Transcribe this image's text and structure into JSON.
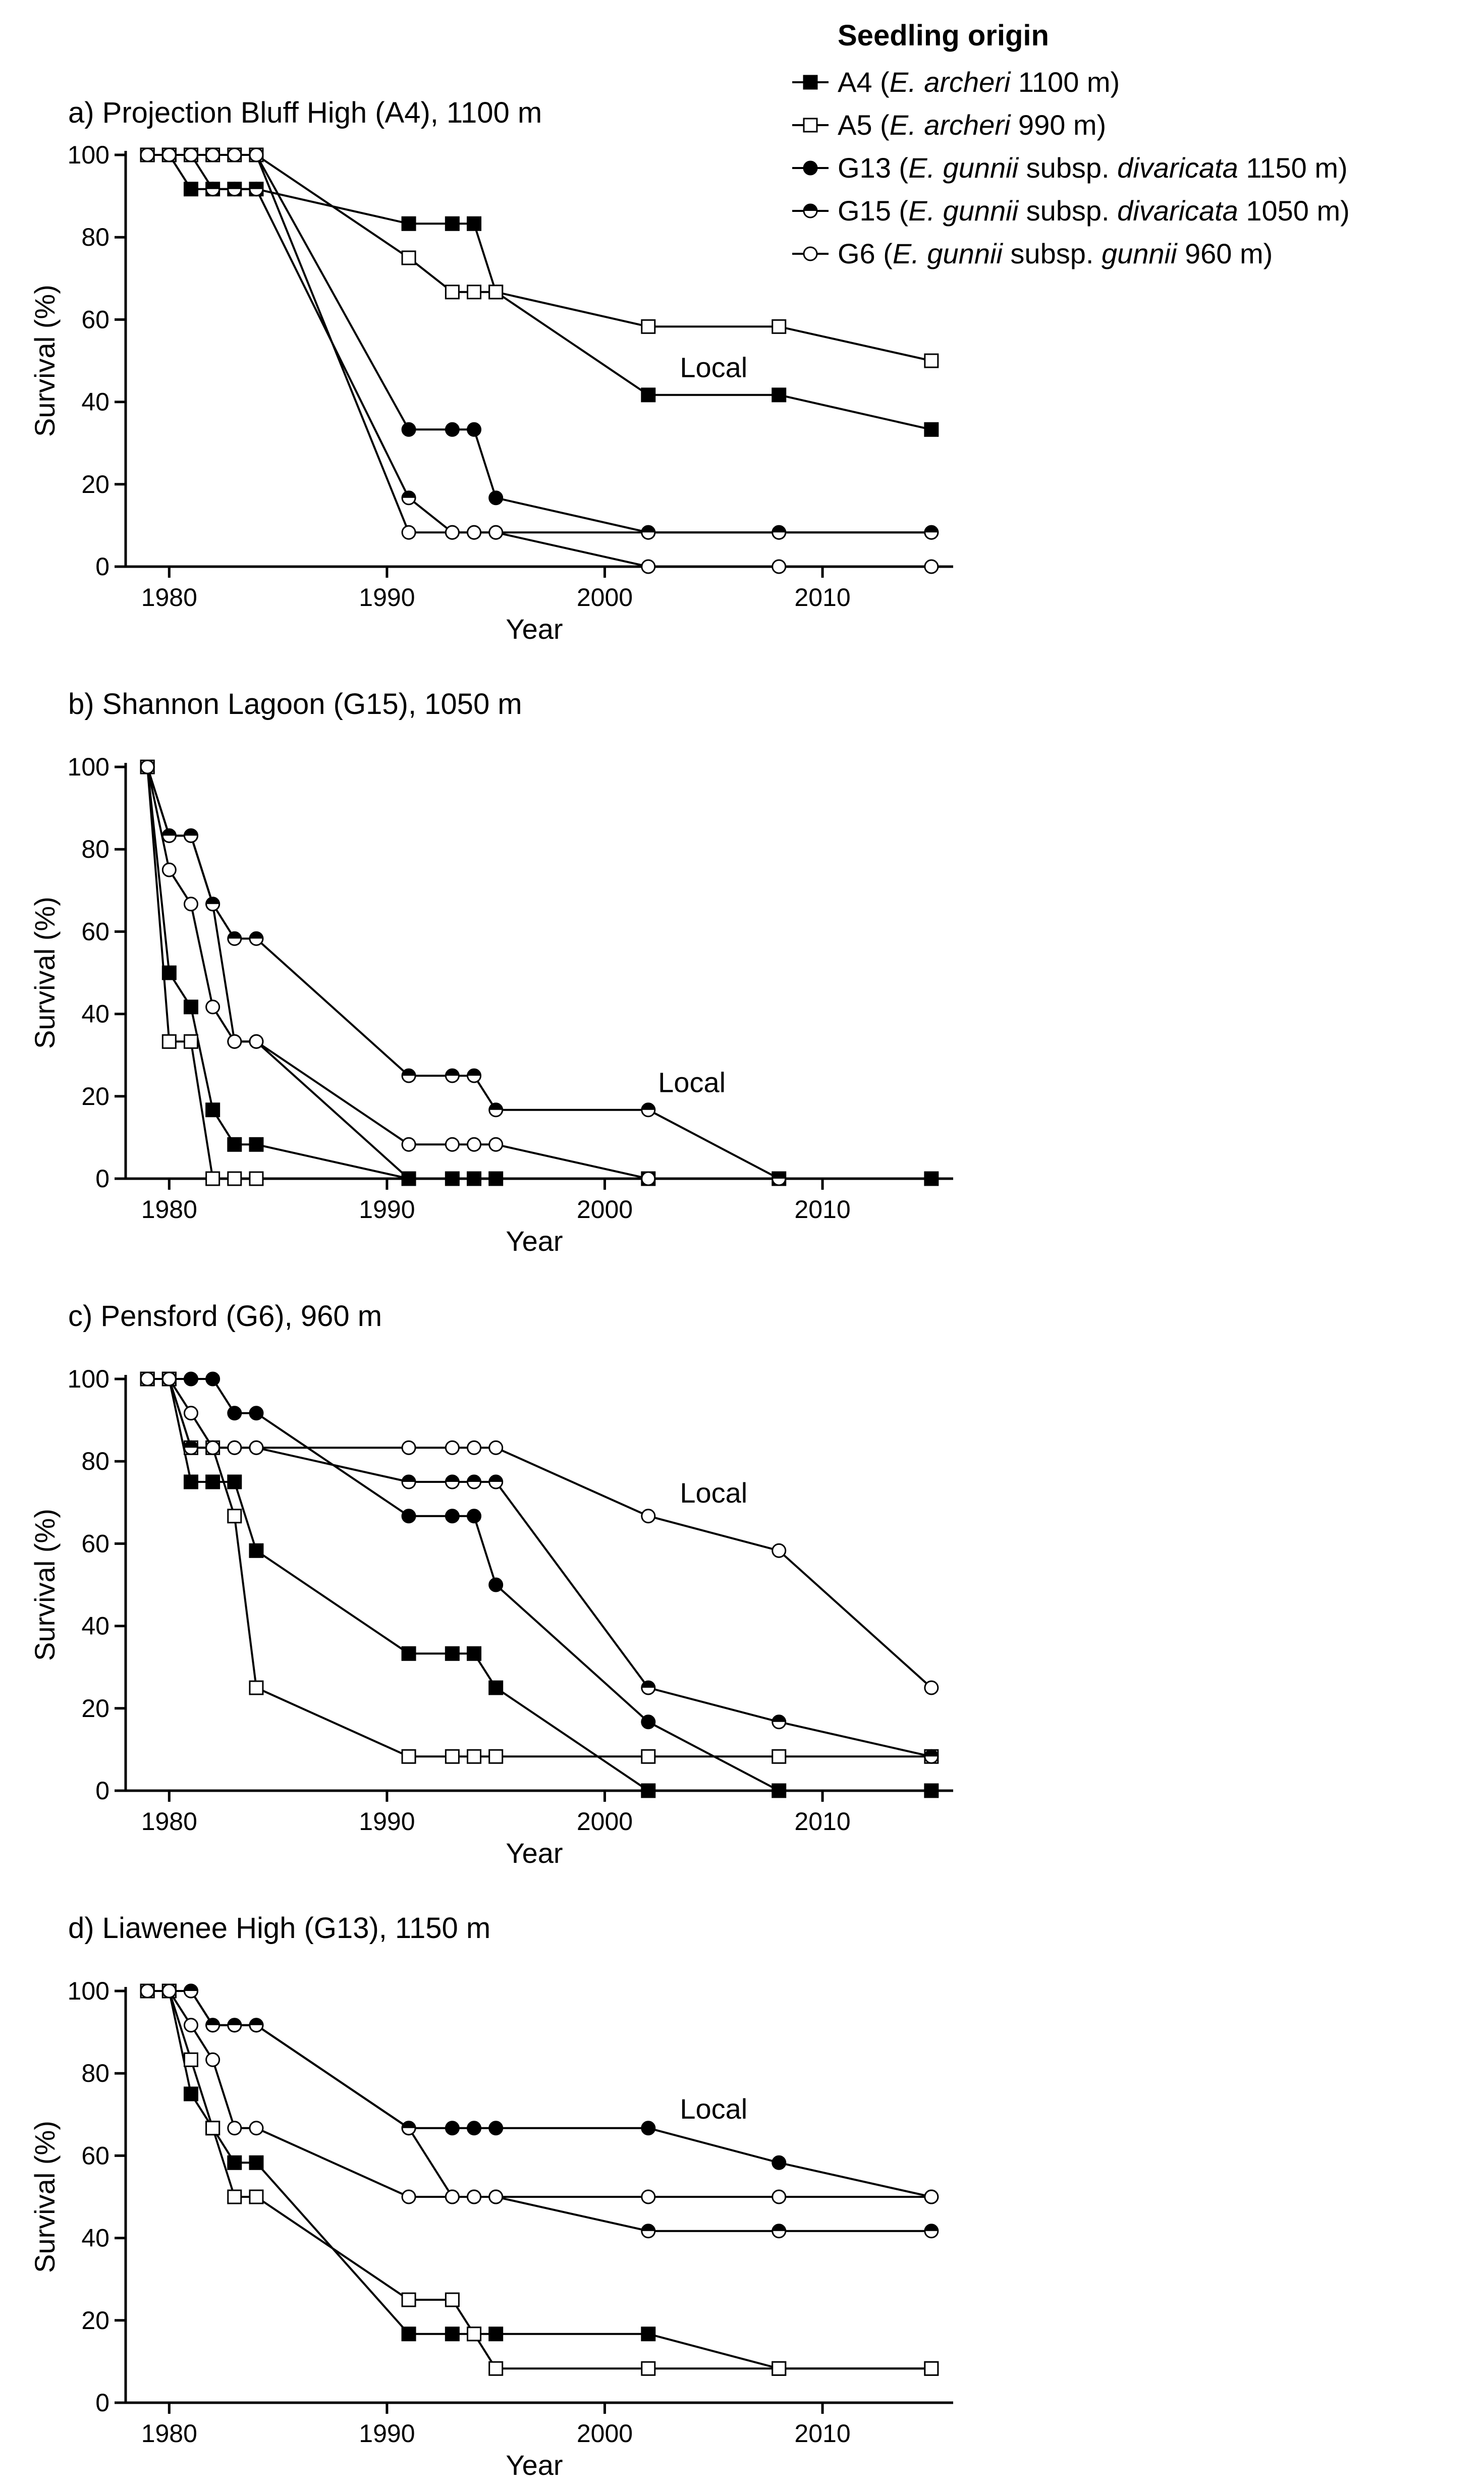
{
  "legend": {
    "title": "Seedling origin",
    "entries": [
      {
        "code": "A4",
        "pre": " (",
        "species": "E. archeri",
        "subsp": "",
        "subspName": "",
        "post": " 1100 m)",
        "marker": "filled-square"
      },
      {
        "code": "A5",
        "pre": " (",
        "species": "E. archeri",
        "subsp": "",
        "subspName": "",
        "post": " 990 m)",
        "marker": "open-square"
      },
      {
        "code": "G13",
        "pre": " (",
        "species": "E. gunnii",
        "subsp": " subsp. ",
        "subspName": "divaricata",
        "post": " 1150 m)",
        "marker": "filled-circle"
      },
      {
        "code": "G15",
        "pre": " (",
        "species": "E. gunnii",
        "subsp": " subsp. ",
        "subspName": "divaricata",
        "post": " 1050 m)",
        "marker": "half-circle"
      },
      {
        "code": "G6",
        "pre": " (",
        "species": "E. gunnii",
        "subsp": " subsp. ",
        "subspName": "gunnii",
        "post": " 960 m)",
        "marker": "open-circle"
      }
    ]
  },
  "colors": {
    "line": "#000000",
    "background": "#ffffff",
    "open_fill": "#ffffff"
  },
  "chart_data": [
    {
      "type": "line",
      "title": "a) Projection Bluff High (A4), 1100 m",
      "xlabel": "Year",
      "ylabel": "Survival (%)",
      "xlim": [
        1978,
        2016
      ],
      "ylim": [
        0,
        100
      ],
      "xticks": [
        1980,
        1990,
        2000,
        2010
      ],
      "yticks": [
        0,
        20,
        40,
        60,
        80,
        100
      ],
      "annotation": {
        "text": "Local",
        "x": 2005,
        "y": 46
      },
      "series": [
        {
          "name": "A4",
          "x": [
            1979,
            1980,
            1981,
            1982,
            1983,
            1984,
            1991,
            1993,
            1994,
            1995,
            2002,
            2008,
            2015
          ],
          "y": [
            100,
            100,
            91.7,
            91.7,
            91.7,
            91.7,
            83.3,
            83.3,
            83.3,
            66.7,
            41.7,
            41.7,
            33.3
          ]
        },
        {
          "name": "A5",
          "x": [
            1979,
            1980,
            1981,
            1982,
            1983,
            1984,
            1991,
            1993,
            1994,
            1995,
            2002,
            2008,
            2015
          ],
          "y": [
            100,
            100,
            100,
            100,
            100,
            100,
            75,
            66.7,
            66.7,
            66.7,
            58.3,
            58.3,
            50
          ]
        },
        {
          "name": "G13",
          "x": [
            1979,
            1980,
            1981,
            1982,
            1983,
            1984,
            1991,
            1993,
            1994,
            1995,
            2002,
            2008,
            2015
          ],
          "y": [
            100,
            100,
            100,
            100,
            100,
            100,
            33.3,
            33.3,
            33.3,
            16.7,
            8.3,
            8.3,
            8.3
          ]
        },
        {
          "name": "G15",
          "x": [
            1979,
            1980,
            1981,
            1982,
            1983,
            1984,
            1991,
            1993,
            1994,
            1995,
            2002,
            2008,
            2015
          ],
          "y": [
            100,
            100,
            100,
            91.7,
            91.7,
            91.7,
            16.7,
            8.3,
            8.3,
            8.3,
            8.3,
            8.3,
            8.3
          ]
        },
        {
          "name": "G6",
          "x": [
            1979,
            1980,
            1981,
            1982,
            1983,
            1984,
            1991,
            1993,
            1994,
            1995,
            2002,
            2008,
            2015
          ],
          "y": [
            100,
            100,
            100,
            100,
            100,
            100,
            8.3,
            8.3,
            8.3,
            8.3,
            0,
            0,
            0
          ]
        }
      ]
    },
    {
      "type": "line",
      "title": "b) Shannon Lagoon (G15), 1050 m",
      "xlabel": "Year",
      "ylabel": "Survival (%)",
      "xlim": [
        1978,
        2016
      ],
      "ylim": [
        0,
        100
      ],
      "xticks": [
        1980,
        1990,
        2000,
        2010
      ],
      "yticks": [
        0,
        20,
        40,
        60,
        80,
        100
      ],
      "annotation": {
        "text": "Local",
        "x": 2004,
        "y": 21
      },
      "series": [
        {
          "name": "A4",
          "x": [
            1979,
            1980,
            1981,
            1982,
            1983,
            1984,
            1991,
            1993,
            1994,
            1995,
            2002,
            2008,
            2015
          ],
          "y": [
            100,
            50,
            41.7,
            16.7,
            8.3,
            8.3,
            0,
            0,
            0,
            0,
            0,
            0,
            0
          ]
        },
        {
          "name": "A5",
          "x": [
            1979,
            1980,
            1981,
            1982,
            1983,
            1984
          ],
          "y": [
            100,
            33.3,
            33.3,
            0,
            0,
            0
          ]
        },
        {
          "name": "G13",
          "x": [
            1979,
            1980,
            1981,
            1982,
            1983,
            1984,
            1991,
            1993,
            1994,
            1995,
            2002,
            2008
          ],
          "y": [
            100,
            83.3,
            83.3,
            66.7,
            33.3,
            33.3,
            0,
            0,
            0,
            0,
            0,
            0
          ]
        },
        {
          "name": "G15",
          "x": [
            1979,
            1980,
            1981,
            1982,
            1983,
            1984,
            1991,
            1993,
            1994,
            1995,
            2002,
            2008
          ],
          "y": [
            100,
            83.3,
            83.3,
            66.7,
            58.3,
            58.3,
            25,
            25,
            25,
            16.7,
            16.7,
            0
          ]
        },
        {
          "name": "G6",
          "x": [
            1979,
            1980,
            1981,
            1982,
            1983,
            1984,
            1991,
            1993,
            1994,
            1995,
            2002
          ],
          "y": [
            100,
            75,
            66.7,
            41.7,
            33.3,
            33.3,
            8.3,
            8.3,
            8.3,
            8.3,
            0
          ]
        }
      ]
    },
    {
      "type": "line",
      "title": "c) Pensford (G6), 960 m",
      "xlabel": "Year",
      "ylabel": "Survival (%)",
      "xlim": [
        1978,
        2016
      ],
      "ylim": [
        0,
        100
      ],
      "xticks": [
        1980,
        1990,
        2000,
        2010
      ],
      "yticks": [
        0,
        20,
        40,
        60,
        80,
        100
      ],
      "annotation": {
        "text": "Local",
        "x": 2005,
        "y": 70
      },
      "series": [
        {
          "name": "A4",
          "x": [
            1979,
            1980,
            1981,
            1982,
            1983,
            1984,
            1991,
            1993,
            1994,
            1995,
            2002,
            2008,
            2015
          ],
          "y": [
            100,
            100,
            75,
            75,
            75,
            58.3,
            33.3,
            33.3,
            33.3,
            25,
            0,
            0,
            0
          ]
        },
        {
          "name": "A5",
          "x": [
            1979,
            1980,
            1981,
            1982,
            1983,
            1984,
            1991,
            1993,
            1994,
            1995,
            2002,
            2008,
            2015
          ],
          "y": [
            100,
            100,
            83.3,
            83.3,
            66.7,
            25,
            8.3,
            8.3,
            8.3,
            8.3,
            8.3,
            8.3,
            8.3
          ]
        },
        {
          "name": "G13",
          "x": [
            1979,
            1980,
            1981,
            1982,
            1983,
            1984,
            1991,
            1993,
            1994,
            1995,
            2002,
            2008
          ],
          "y": [
            100,
            100,
            100,
            100,
            91.7,
            91.7,
            66.7,
            66.7,
            66.7,
            50,
            16.7,
            0
          ]
        },
        {
          "name": "G15",
          "x": [
            1979,
            1980,
            1981,
            1982,
            1983,
            1984,
            1991,
            1993,
            1994,
            1995,
            2002,
            2008,
            2015
          ],
          "y": [
            100,
            100,
            83.3,
            83.3,
            83.3,
            83.3,
            75,
            75,
            75,
            75,
            25,
            16.7,
            8.3
          ]
        },
        {
          "name": "G6",
          "x": [
            1979,
            1980,
            1981,
            1982,
            1983,
            1984,
            1991,
            1993,
            1994,
            1995,
            2002,
            2008,
            2015
          ],
          "y": [
            100,
            100,
            91.7,
            83.3,
            83.3,
            83.3,
            83.3,
            83.3,
            83.3,
            83.3,
            66.7,
            58.3,
            25
          ]
        }
      ]
    },
    {
      "type": "line",
      "title": "d) Liawenee High (G13), 1150 m",
      "xlabel": "Year",
      "ylabel": "Survival (%)",
      "xlim": [
        1978,
        2016
      ],
      "ylim": [
        0,
        100
      ],
      "xticks": [
        1980,
        1990,
        2000,
        2010
      ],
      "yticks": [
        0,
        20,
        40,
        60,
        80,
        100
      ],
      "annotation": {
        "text": "Local",
        "x": 2005,
        "y": 69
      },
      "series": [
        {
          "name": "A4",
          "x": [
            1979,
            1980,
            1981,
            1982,
            1983,
            1984,
            1991,
            1993,
            1994,
            1995,
            2002,
            2008,
            2015
          ],
          "y": [
            100,
            100,
            75,
            66.7,
            58.3,
            58.3,
            16.7,
            16.7,
            16.7,
            16.7,
            16.7,
            8.3,
            8.3
          ]
        },
        {
          "name": "A5",
          "x": [
            1979,
            1980,
            1981,
            1982,
            1983,
            1984,
            1991,
            1993,
            1994,
            1995,
            2002,
            2008,
            2015
          ],
          "y": [
            100,
            100,
            83.3,
            66.7,
            50,
            50,
            25,
            25,
            16.7,
            8.3,
            8.3,
            8.3,
            8.3
          ]
        },
        {
          "name": "G13",
          "x": [
            1979,
            1980,
            1981,
            1982,
            1983,
            1984,
            1991,
            1993,
            1994,
            1995,
            2002,
            2008,
            2015
          ],
          "y": [
            100,
            100,
            100,
            91.7,
            91.7,
            91.7,
            66.7,
            66.7,
            66.7,
            66.7,
            66.7,
            58.3,
            50
          ]
        },
        {
          "name": "G15",
          "x": [
            1979,
            1980,
            1981,
            1982,
            1983,
            1984,
            1991,
            1993,
            1994,
            1995,
            2002,
            2008,
            2015
          ],
          "y": [
            100,
            100,
            100,
            91.7,
            91.7,
            91.7,
            66.7,
            50,
            50,
            50,
            41.7,
            41.7,
            41.7
          ]
        },
        {
          "name": "G6",
          "x": [
            1979,
            1980,
            1981,
            1982,
            1983,
            1984,
            1991,
            1993,
            1994,
            1995,
            2002,
            2008,
            2015
          ],
          "y": [
            100,
            100,
            91.7,
            83.3,
            66.7,
            66.7,
            50,
            50,
            50,
            50,
            50,
            50,
            50
          ]
        }
      ]
    }
  ]
}
